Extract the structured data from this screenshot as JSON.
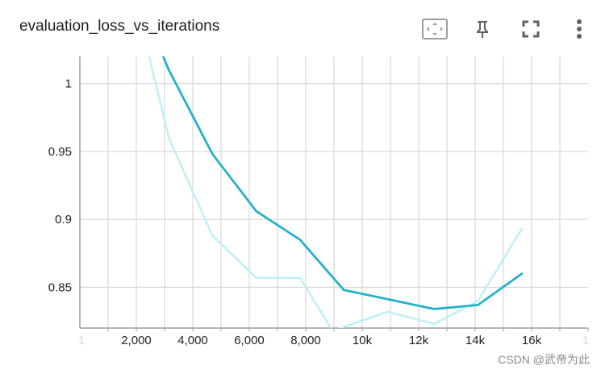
{
  "header": {
    "title": "evaluation_loss_vs_iterations",
    "icons": [
      "fit-domain-icon",
      "pin-icon",
      "fullscreen-icon",
      "more-vert-icon"
    ]
  },
  "chart_data": {
    "type": "line",
    "title": "evaluation_loss_vs_iterations",
    "xlabel": "",
    "ylabel": "",
    "xlim": [
      0,
      18000
    ],
    "ylim": [
      0.82,
      1.02
    ],
    "x_ticks": [
      "2,000",
      "4,000",
      "6,000",
      "8,000",
      "10k",
      "12k",
      "14k",
      "16k"
    ],
    "y_ticks": [
      "0.85",
      "0.9",
      "0.95",
      "1"
    ],
    "grid": true,
    "legend": "none",
    "series": [
      {
        "color": "#bdf0f7",
        "points": [
          [
            2450,
            1.02
          ],
          [
            3150,
            0.96
          ],
          [
            4700,
            0.888
          ],
          [
            6250,
            0.857
          ],
          [
            7800,
            0.857
          ],
          [
            8950,
            0.818
          ],
          [
            10900,
            0.832
          ],
          [
            12550,
            0.823
          ],
          [
            14100,
            0.84
          ],
          [
            15650,
            0.893
          ]
        ]
      },
      {
        "color": "#26b1c9",
        "points": [
          [
            2950,
            1.02
          ],
          [
            3150,
            1.01
          ],
          [
            4700,
            0.948
          ],
          [
            6250,
            0.906
          ],
          [
            7800,
            0.885
          ],
          [
            9350,
            0.848
          ],
          [
            12550,
            0.834
          ],
          [
            14100,
            0.837
          ],
          [
            15650,
            0.86
          ]
        ]
      }
    ]
  },
  "watermark": "CSDN @武帝为此"
}
